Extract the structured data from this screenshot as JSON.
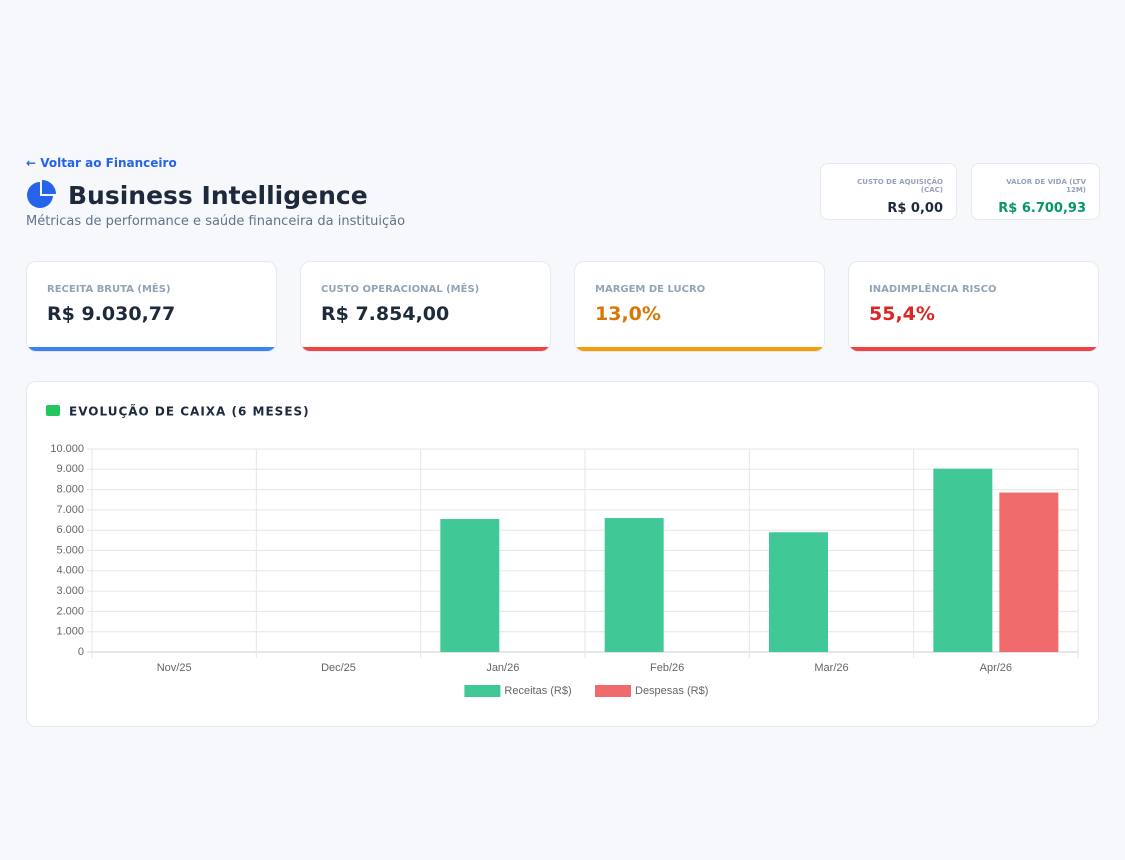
{
  "header": {
    "back_link": "Voltar ao Financeiro",
    "title": "Business Intelligence",
    "subtitle": "Métricas de performance e saúde financeira da instituição"
  },
  "summary_cards": [
    {
      "label": "CUSTO DE AQUISIÇÃO (CAC)",
      "value": "R$ 0,00",
      "color": "#1e293b"
    },
    {
      "label": "VALOR DE VIDA (LTV 12M)",
      "value": "R$ 6.700,93",
      "color": "#059669"
    }
  ],
  "kpis": [
    {
      "label": "RECEITA BRUTA (MÊS)",
      "value": "R$ 9.030,77",
      "color": "#1e293b",
      "accent": "#3b82f6"
    },
    {
      "label": "CUSTO OPERACIONAL (MÊS)",
      "value": "R$ 7.854,00",
      "color": "#1e293b",
      "accent": "#ef4444"
    },
    {
      "label": "MARGEM DE LUCRO",
      "value": "13,0%",
      "color": "#d97706",
      "accent": "#f59e0b"
    },
    {
      "label": "INADIMPLÊNCIA RISCO",
      "value": "55,4%",
      "color": "#dc2626",
      "accent": "#ef4444"
    }
  ],
  "chart_data": {
    "type": "bar",
    "title": "EVOLUÇÃO DE CAIXA (6 MESES)",
    "categories": [
      "Nov/25",
      "Dec/25",
      "Jan/26",
      "Feb/26",
      "Mar/26",
      "Apr/26"
    ],
    "series": [
      {
        "name": "Receitas (R$)",
        "color": "#40c997",
        "values": [
          0,
          0,
          6550,
          6600,
          5900,
          9030.77
        ]
      },
      {
        "name": "Despesas (R$)",
        "color": "#f06b6b",
        "values": [
          0,
          0,
          0,
          0,
          0,
          7854
        ]
      }
    ],
    "ylim": [
      0,
      10000
    ],
    "yticks": [
      0,
      {
        "value": 1000,
        "label": "1.000"
      },
      {
        "value": 2000,
        "label": "2.000"
      },
      {
        "value": 3000,
        "label": "3.000"
      },
      {
        "value": 4000,
        "label": "4.000"
      },
      {
        "value": 5000,
        "label": "5.000"
      },
      {
        "value": 6000,
        "label": "6.000"
      },
      {
        "value": 7000,
        "label": "7.000"
      },
      {
        "value": 8000,
        "label": "8.000"
      },
      {
        "value": 9000,
        "label": "9.000"
      },
      {
        "value": 10000,
        "label": "10.000"
      }
    ],
    "grid": true,
    "legend": "bottom"
  }
}
